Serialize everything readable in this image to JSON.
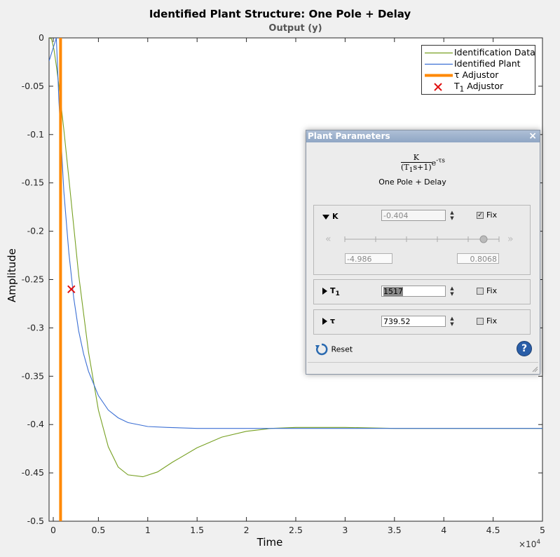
{
  "figure": {
    "title": "Identified Plant Structure: One Pole + Delay",
    "subtitle": "Output (y)",
    "xlabel": "Time",
    "ylabel": "Amplitude",
    "x_exponent_base": "×10",
    "x_exponent_power": "4"
  },
  "chart_data": {
    "type": "line",
    "title": "Identified Plant Structure: One Pole + Delay",
    "subtitle": "Output (y)",
    "xlabel": "Time",
    "ylabel": "Amplitude",
    "xlim": [
      0,
      5
    ],
    "ylim": [
      -0.5,
      0
    ],
    "x_ticks": [
      "0",
      "0.5",
      "1",
      "1.5",
      "2",
      "2.5",
      "3",
      "3.5",
      "4",
      "4.5",
      "5"
    ],
    "y_ticks": [
      "0",
      "-0.05",
      "-0.1",
      "-0.15",
      "-0.2",
      "-0.25",
      "-0.3",
      "-0.35",
      "-0.4",
      "-0.45",
      "-0.5"
    ],
    "legend_position": "top-right",
    "series": [
      {
        "name": "Identification Data",
        "color": "#77a022",
        "x": [
          0,
          0.025,
          0.05,
          0.075,
          0.1,
          0.15,
          0.2,
          0.25,
          0.3,
          0.4,
          0.5,
          0.6,
          0.7,
          0.8,
          0.95,
          1.1,
          1.25,
          1.5,
          1.75,
          2,
          2.25,
          2.5,
          2.75,
          3,
          3.5,
          4,
          4.5,
          5
        ],
        "y": [
          0,
          -0.001,
          -0.012,
          -0.03,
          -0.05,
          -0.095,
          -0.145,
          -0.195,
          -0.245,
          -0.325,
          -0.385,
          -0.423,
          -0.444,
          -0.452,
          -0.454,
          -0.449,
          -0.439,
          -0.424,
          -0.413,
          -0.407,
          -0.404,
          -0.403,
          -0.403,
          -0.403,
          -0.404,
          -0.404,
          -0.404,
          -0.404
        ]
      },
      {
        "name": "Identified Plant",
        "color": "#3b6fd4",
        "x": [
          0,
          0.0739,
          0.1,
          0.15,
          0.2,
          0.25,
          0.3,
          0.35,
          0.4,
          0.5,
          0.6,
          0.7,
          0.8,
          1,
          1.2,
          1.5,
          2,
          3,
          4,
          5
        ],
        "y": [
          -0.024,
          0,
          -0.066,
          -0.159,
          -0.222,
          -0.269,
          -0.303,
          -0.327,
          -0.345,
          -0.37,
          -0.385,
          -0.393,
          -0.398,
          -0.402,
          -0.403,
          -0.404,
          -0.404,
          -0.404,
          -0.404,
          -0.404
        ]
      },
      {
        "name": "τ Adjustor",
        "color": "#ff8800",
        "x": [
          0.0739,
          0.0739
        ],
        "y": [
          0,
          -0.5
        ]
      },
      {
        "name": "T₁ Adjustor",
        "color": "#e01010",
        "marker": "x",
        "x": [
          0.2256
        ],
        "y": [
          -0.26
        ]
      }
    ]
  },
  "legend": [
    {
      "label": "Identification Data",
      "color": "#77a022",
      "style": "line"
    },
    {
      "label": "Identified Plant",
      "color": "#3b6fd4",
      "style": "line"
    },
    {
      "label": "τ Adjustor",
      "color": "#ff8800",
      "style": "thick"
    },
    {
      "label": "T",
      "sub": "1",
      "label_rest": " Adjustor",
      "color": "#e01010",
      "style": "x"
    }
  ],
  "dialog": {
    "title": "Plant Parameters",
    "formula_num": "K",
    "formula_den_a": "(T",
    "formula_den_sub": "1",
    "formula_den_b": "s+1)",
    "formula_exp": "e",
    "formula_exp_sup": "-τs",
    "subtitle": "One Pole + Delay",
    "params": {
      "K": {
        "label": "K",
        "value": "-0.404",
        "fix_label": "Fix",
        "fixed": true,
        "min": "-4.986",
        "max": "0.8068",
        "slider_fraction": 0.9
      },
      "T1": {
        "label": "T",
        "sub": "1",
        "value": "1517",
        "fix_label": "Fix",
        "fixed": false
      },
      "tau": {
        "label": "τ",
        "value": "739.52",
        "fix_label": "Fix",
        "fixed": false
      }
    },
    "reset_label": "Reset",
    "help_label": "?"
  }
}
